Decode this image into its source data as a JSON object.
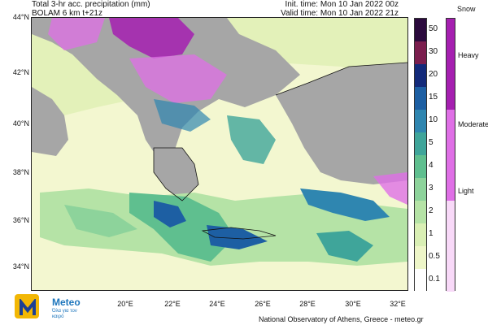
{
  "header": {
    "line1_left": "Total 3-hr acc. precipitation (mm)",
    "line2_left": "BOLAM 6 km t+21z",
    "line1_right": "Init. time: Mon 10 Jan 2022 00z",
    "line2_right": "Valid time: Mon 10 Jan 2022 21z"
  },
  "lat_labels": [
    "44°N",
    "42°N",
    "40°N",
    "38°N",
    "36°N",
    "34°N"
  ],
  "lon_labels": [
    "20°E",
    "22°E",
    "24°E",
    "26°E",
    "28°E",
    "30°E",
    "32°E"
  ],
  "precip_scale": {
    "labels": [
      "50",
      "30",
      "20",
      "15",
      "10",
      "5",
      "4",
      "3",
      "2",
      "1",
      "0.5",
      "0.1"
    ],
    "colors": [
      "#2b0a3d",
      "#7b1e4e",
      "#132a7a",
      "#1d5fa3",
      "#2f86b0",
      "#3fa59a",
      "#5fbf8f",
      "#8dd39b",
      "#b5e3a6",
      "#d9efb4",
      "#eef6c8",
      "#ffffff"
    ]
  },
  "snow_scale": {
    "title": "Snow",
    "labels": [
      "Heavy",
      "Moderate",
      "Light"
    ],
    "colors": [
      "#a51fb0",
      "#df6fe6",
      "#f8d9f8"
    ]
  },
  "map_colors": {
    "land": "#a6a6a6",
    "sea_background": "#f3f7d0",
    "coastline": "#111111"
  },
  "logo": {
    "name": "Meteo",
    "tagline": "Όλα για τον καιρό",
    "icon": "meteo-m-logo-icon"
  },
  "credit": "National Observatory of Athens, Greece - meteo.gr"
}
